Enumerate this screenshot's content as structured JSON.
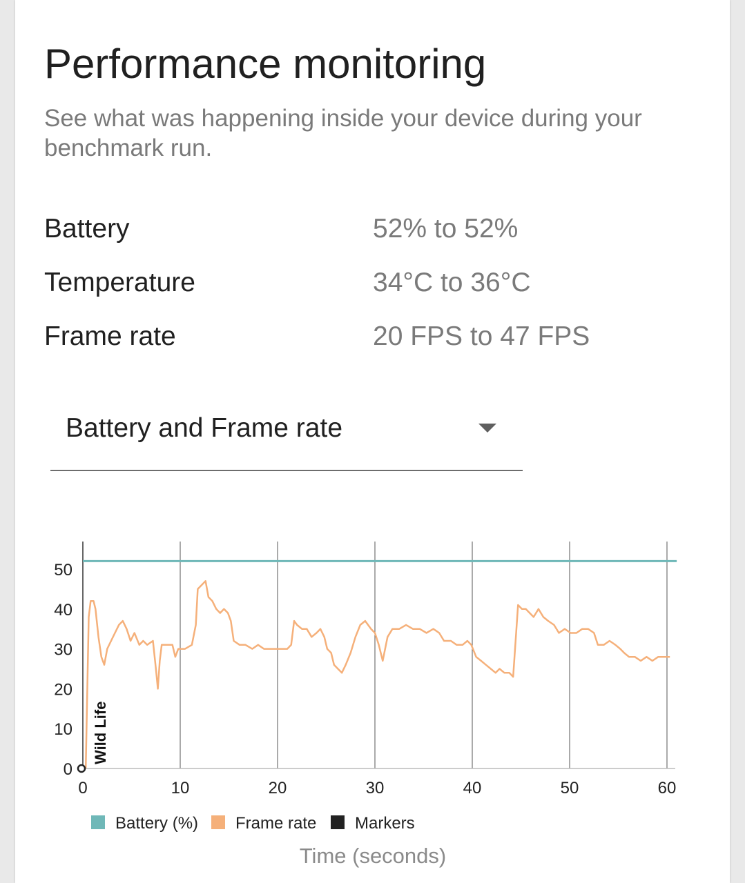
{
  "header": {
    "title": "Performance monitoring",
    "subtitle": "See what was happening inside your device during your benchmark run."
  },
  "stats": [
    {
      "label": "Battery",
      "value": "52% to 52%"
    },
    {
      "label": "Temperature",
      "value": "34°C to 36°C"
    },
    {
      "label": "Frame rate",
      "value": "20 FPS to 47 FPS"
    }
  ],
  "dropdown": {
    "selected": "Battery and Frame rate",
    "icon": "chevron-down-icon"
  },
  "colors": {
    "battery": "#6fb8b8",
    "frame_rate": "#f5b07a",
    "markers": "#222222",
    "grid": "#555555"
  },
  "chart_data": {
    "type": "line",
    "xlabel": "Time (seconds)",
    "ylabel": "",
    "xlim": [
      0,
      61
    ],
    "ylim": [
      0,
      57
    ],
    "x_ticks": [
      "0",
      "10",
      "20",
      "30",
      "40",
      "50",
      "60"
    ],
    "y_ticks": [
      "0",
      "10",
      "20",
      "30",
      "40",
      "50"
    ],
    "legend": [
      "Battery (%)",
      "Frame rate",
      "Markers"
    ],
    "legend_position": "bottom",
    "grid": "vertical",
    "markers": [
      {
        "x": 0,
        "label": "Wild Life"
      }
    ],
    "series": [
      {
        "name": "Battery (%)",
        "points": [
          [
            0,
            52
          ],
          [
            61,
            52
          ]
        ]
      },
      {
        "name": "Frame rate",
        "points": [
          [
            0.3,
            0
          ],
          [
            0.6,
            38
          ],
          [
            0.8,
            42
          ],
          [
            1.1,
            42
          ],
          [
            1.3,
            40
          ],
          [
            1.6,
            33
          ],
          [
            1.9,
            28
          ],
          [
            2.2,
            26
          ],
          [
            2.5,
            30
          ],
          [
            2.9,
            32
          ],
          [
            3.3,
            34
          ],
          [
            3.7,
            36
          ],
          [
            4.1,
            37
          ],
          [
            4.5,
            35
          ],
          [
            4.9,
            32
          ],
          [
            5.3,
            34
          ],
          [
            5.8,
            31
          ],
          [
            6.2,
            32
          ],
          [
            6.6,
            31
          ],
          [
            7.2,
            32
          ],
          [
            7.5,
            25
          ],
          [
            7.7,
            20
          ],
          [
            7.9,
            27
          ],
          [
            8.1,
            31
          ],
          [
            8.6,
            31
          ],
          [
            9.2,
            31
          ],
          [
            9.5,
            28
          ],
          [
            9.8,
            30
          ],
          [
            10.5,
            30
          ],
          [
            11.2,
            31
          ],
          [
            11.6,
            36
          ],
          [
            11.8,
            45
          ],
          [
            12.2,
            46
          ],
          [
            12.6,
            47
          ],
          [
            12.9,
            43
          ],
          [
            13.3,
            42
          ],
          [
            13.7,
            40
          ],
          [
            14.1,
            39
          ],
          [
            14.5,
            40
          ],
          [
            14.9,
            39
          ],
          [
            15.2,
            37
          ],
          [
            15.5,
            32
          ],
          [
            16.1,
            31
          ],
          [
            16.7,
            31
          ],
          [
            17.4,
            30
          ],
          [
            18.0,
            31
          ],
          [
            18.6,
            30
          ],
          [
            19.5,
            30
          ],
          [
            20.3,
            30
          ],
          [
            21.0,
            30
          ],
          [
            21.4,
            31
          ],
          [
            21.7,
            37
          ],
          [
            22.0,
            36
          ],
          [
            22.5,
            35
          ],
          [
            23.0,
            35
          ],
          [
            23.5,
            33
          ],
          [
            24.0,
            34
          ],
          [
            24.4,
            35
          ],
          [
            24.8,
            33
          ],
          [
            25.1,
            30
          ],
          [
            25.5,
            29
          ],
          [
            25.8,
            26
          ],
          [
            26.2,
            25
          ],
          [
            26.6,
            24
          ],
          [
            27.0,
            26
          ],
          [
            27.5,
            29
          ],
          [
            28.0,
            33
          ],
          [
            28.5,
            36
          ],
          [
            29.0,
            37
          ],
          [
            29.6,
            35
          ],
          [
            30.0,
            34
          ],
          [
            30.4,
            31
          ],
          [
            30.8,
            27
          ],
          [
            31.3,
            33
          ],
          [
            31.8,
            35
          ],
          [
            32.5,
            35
          ],
          [
            33.2,
            36
          ],
          [
            33.9,
            35
          ],
          [
            34.6,
            35
          ],
          [
            35.3,
            34
          ],
          [
            36.0,
            35
          ],
          [
            36.6,
            34
          ],
          [
            37.1,
            32
          ],
          [
            37.8,
            32
          ],
          [
            38.4,
            31
          ],
          [
            39.0,
            31
          ],
          [
            39.5,
            32
          ],
          [
            39.9,
            31
          ],
          [
            40.4,
            28
          ],
          [
            40.9,
            27
          ],
          [
            41.4,
            26
          ],
          [
            41.9,
            25
          ],
          [
            42.4,
            24
          ],
          [
            42.8,
            25
          ],
          [
            43.3,
            24
          ],
          [
            43.8,
            24
          ],
          [
            44.2,
            23
          ],
          [
            44.7,
            41
          ],
          [
            45.1,
            40
          ],
          [
            45.5,
            40
          ],
          [
            45.9,
            39
          ],
          [
            46.3,
            38
          ],
          [
            46.8,
            40
          ],
          [
            47.3,
            38
          ],
          [
            47.8,
            37
          ],
          [
            48.4,
            36
          ],
          [
            48.9,
            34
          ],
          [
            49.5,
            35
          ],
          [
            50.1,
            34
          ],
          [
            50.7,
            34
          ],
          [
            51.3,
            35
          ],
          [
            51.9,
            35
          ],
          [
            52.5,
            34
          ],
          [
            52.9,
            31
          ],
          [
            53.5,
            31
          ],
          [
            54.1,
            32
          ],
          [
            54.7,
            31
          ],
          [
            55.2,
            30
          ],
          [
            55.6,
            29
          ],
          [
            56.1,
            28
          ],
          [
            56.7,
            28
          ],
          [
            57.3,
            27
          ],
          [
            57.9,
            28
          ],
          [
            58.5,
            27
          ],
          [
            59.1,
            28
          ],
          [
            59.7,
            28
          ],
          [
            60.3,
            28
          ]
        ]
      }
    ]
  }
}
